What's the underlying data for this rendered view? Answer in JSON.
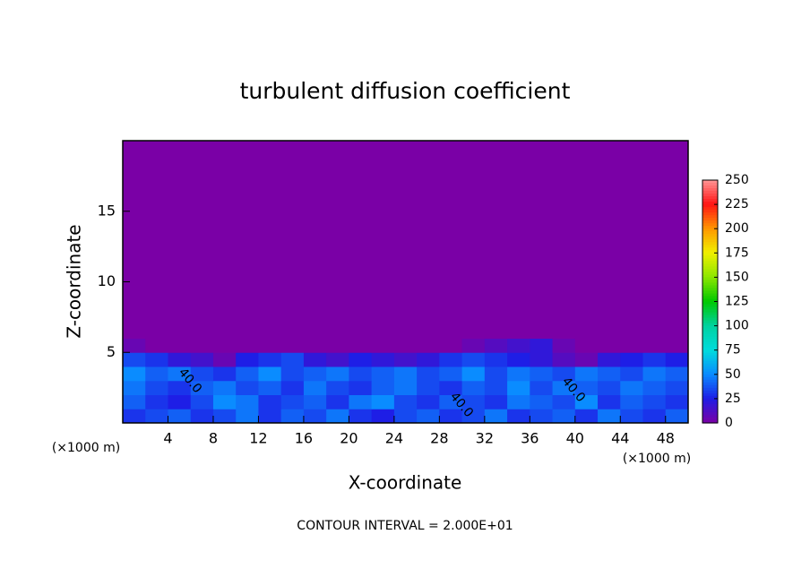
{
  "chart_data": {
    "type": "heatmap",
    "title": "turbulent diffusion coefficient",
    "xlabel": "X-coordinate",
    "ylabel": "Z-coordinate",
    "x_unit": "(×1000 m)",
    "y_unit": "(×1000 m)",
    "footnote": "CONTOUR INTERVAL = 2.000E+01",
    "contour_labels": [
      "40.0",
      "40.0",
      "40.0"
    ],
    "xlim": [
      0,
      50
    ],
    "ylim": [
      0,
      20
    ],
    "xticks": [
      4,
      8,
      12,
      16,
      20,
      24,
      28,
      32,
      36,
      40,
      44,
      48
    ],
    "yticks": [
      5,
      10,
      15
    ],
    "x_edges": [
      0,
      2,
      4,
      6,
      8,
      10,
      12,
      14,
      16,
      18,
      20,
      22,
      24,
      26,
      28,
      30,
      32,
      34,
      36,
      38,
      40,
      42,
      44,
      46,
      48,
      50
    ],
    "y_edges": [
      0,
      1,
      2,
      3,
      4,
      5,
      6,
      20
    ],
    "values": [
      [
        30,
        35,
        40,
        30,
        35,
        45,
        30,
        40,
        35,
        45,
        30,
        25,
        35,
        40,
        30,
        35,
        45,
        30,
        35,
        40,
        30,
        45,
        35,
        30,
        40
      ],
      [
        40,
        30,
        25,
        35,
        50,
        45,
        30,
        35,
        40,
        30,
        45,
        50,
        35,
        30,
        40,
        35,
        30,
        45,
        40,
        35,
        50,
        30,
        40,
        35,
        30
      ],
      [
        45,
        35,
        30,
        40,
        45,
        35,
        40,
        30,
        45,
        35,
        30,
        40,
        45,
        35,
        30,
        40,
        35,
        50,
        35,
        45,
        40,
        35,
        45,
        40,
        35
      ],
      [
        50,
        40,
        45,
        35,
        30,
        40,
        50,
        35,
        40,
        45,
        35,
        40,
        45,
        35,
        40,
        50,
        35,
        45,
        40,
        35,
        45,
        40,
        35,
        45,
        40
      ],
      [
        35,
        30,
        20,
        15,
        5,
        25,
        30,
        35,
        20,
        15,
        25,
        20,
        15,
        20,
        30,
        35,
        30,
        25,
        20,
        10,
        5,
        20,
        25,
        30,
        25
      ],
      [
        5,
        0,
        0,
        0,
        0,
        0,
        0,
        0,
        0,
        0,
        0,
        0,
        0,
        0,
        0,
        5,
        10,
        15,
        20,
        5,
        0,
        0,
        0,
        0,
        0
      ],
      [
        0,
        0,
        0,
        0,
        0,
        0,
        0,
        0,
        0,
        0,
        0,
        0,
        0,
        0,
        0,
        0,
        0,
        0,
        0,
        0,
        0,
        0,
        0,
        0,
        0
      ]
    ],
    "colorbar_lim": [
      0,
      250
    ],
    "colorbar_ticks": [
      0,
      25,
      50,
      75,
      100,
      125,
      150,
      175,
      200,
      225,
      250
    ],
    "colors": [
      "#7a00a6",
      "#1e1ee6",
      "#0a8cff",
      "#00dcdc",
      "#00d2a0",
      "#00c800",
      "#8ce600",
      "#f0f000",
      "#ff9600",
      "#ff1414",
      "#ff9696"
    ]
  }
}
